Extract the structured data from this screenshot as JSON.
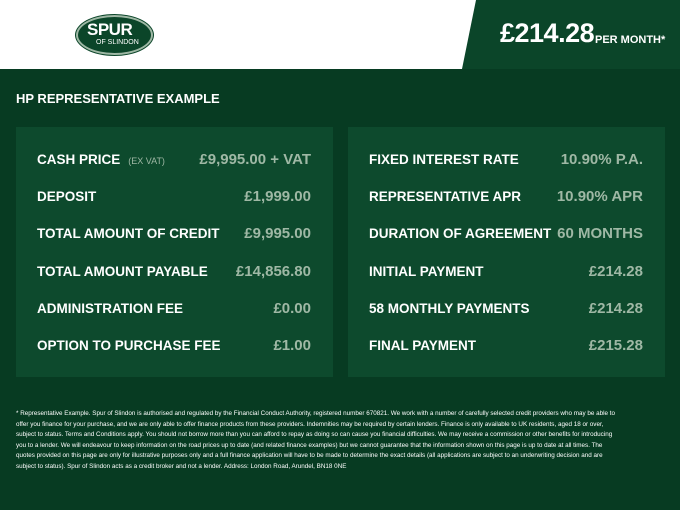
{
  "header": {
    "logo_text": "SPUR",
    "logo_sub": "OF SLINDON",
    "monthly_price": "£214.28",
    "per_month": "PER MONTH*"
  },
  "section_title": "HP REPRESENTATIVE EXAMPLE",
  "left": [
    {
      "label": "CASH PRICE",
      "note": "(EX VAT)",
      "value": "£9,995.00 + VAT"
    },
    {
      "label": "DEPOSIT",
      "value": "£1,999.00"
    },
    {
      "label": "TOTAL AMOUNT OF CREDIT",
      "value": "£9,995.00"
    },
    {
      "label": "TOTAL AMOUNT PAYABLE",
      "value": "£14,856.80"
    },
    {
      "label": "ADMINISTRATION FEE",
      "value": "£0.00"
    },
    {
      "label": "OPTION TO PURCHASE FEE",
      "value": "£1.00"
    }
  ],
  "right": [
    {
      "label": "FIXED INTEREST RATE",
      "value": "10.90% P.A."
    },
    {
      "label": "REPRESENTATIVE APR",
      "value": "10.90% APR"
    },
    {
      "label": "DURATION OF AGREEMENT",
      "value": "60 MONTHS"
    },
    {
      "label": "INITIAL PAYMENT",
      "value": "£214.28"
    },
    {
      "label": "58 MONTHLY PAYMENTS",
      "value": "£214.28"
    },
    {
      "label": "FINAL PAYMENT",
      "value": "£215.28"
    }
  ],
  "disclaimer": "* Representative Example. Spur of Slindon is authorised and regulated by the Financial Conduct Authority, registered number 670821. We work with a number of carefully selected credit providers who may be able to offer you finance for your purchase, and we are only able to offer finance products from these providers. Indemnities may be required by certain lenders. Finance is only available to UK residents, aged 18 or over, subject to status. Terms and Conditions apply. You should not borrow more than you can afford to repay as doing so can cause you financial difficulties. We may receive a commission or other benefits for introducing you to a lender. We will endeavour to keep information on the road prices up to date (and related finance examples) but we cannot guarantee that the information shown on this page is up to date at all times. The quotes provided on this page are only for illustrative purposes only and a full finance application will have to be made to determine the exact details (all applications are subject to an underwriting decision and are subject to status). Spur of Slindon acts as a credit broker and not a lender. Address: London Road, Arundel, BN18 0NE"
}
